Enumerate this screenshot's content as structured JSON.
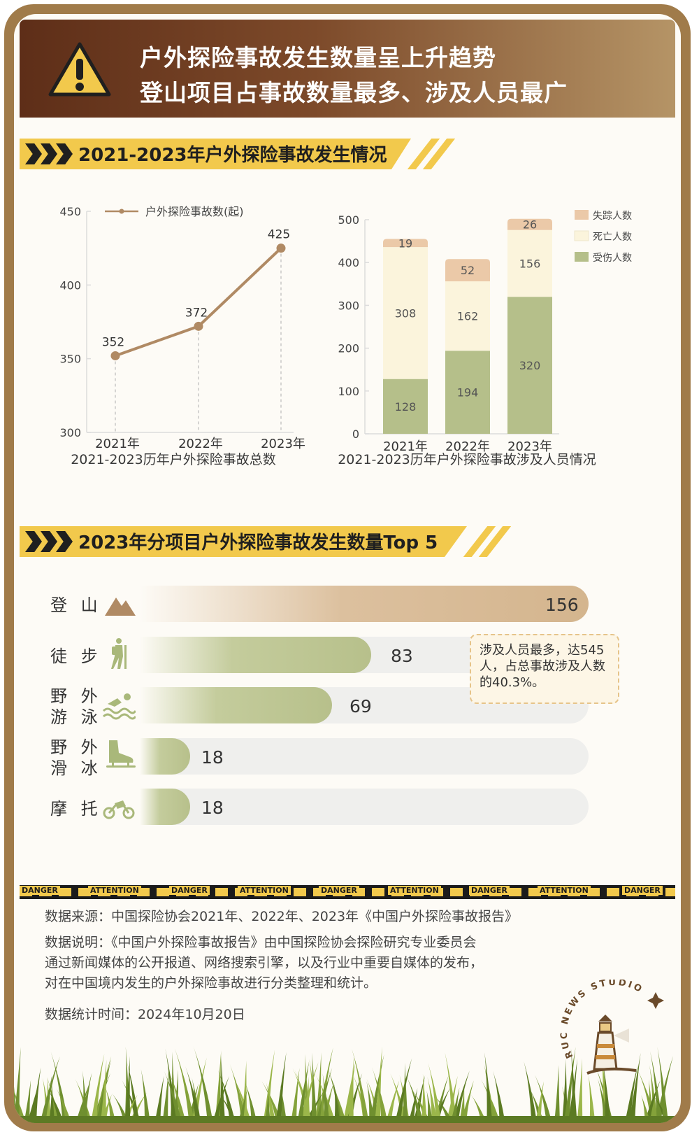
{
  "header": {
    "line1": "户外探险事故发生数量呈上升趋势",
    "line2": "登山项目占事故数量最多、涉及人员最广"
  },
  "section1": {
    "title": "2021-2023年户外探险事故发生情况"
  },
  "section2": {
    "title": "2023年分项目户外探险事故发生数量Top 5"
  },
  "chart_data": [
    {
      "type": "line",
      "legend": "户外探险事故数(起)",
      "categories": [
        "2021年",
        "2022年",
        "2023年"
      ],
      "values": [
        352,
        372,
        425
      ],
      "ylim": [
        300,
        450
      ],
      "yticks": [
        300,
        350,
        400,
        450
      ],
      "caption": "2021-2023历年户外探险事故总数",
      "color": "#b08a64"
    },
    {
      "type": "bar",
      "stacked": true,
      "categories": [
        "2021年",
        "2022年",
        "2023年"
      ],
      "series": [
        {
          "name": "受伤人数",
          "values": [
            128,
            194,
            320
          ],
          "color": "#b5bf8a"
        },
        {
          "name": "死亡人数",
          "values": [
            308,
            162,
            156
          ],
          "color": "#fbf4dc"
        },
        {
          "name": "失踪人数",
          "values": [
            19,
            52,
            26
          ],
          "color": "#ebc9a8"
        }
      ],
      "legend_order": [
        "失踪人数",
        "死亡人数",
        "受伤人数"
      ],
      "ylim": [
        0,
        500
      ],
      "yticks": [
        0,
        100,
        200,
        300,
        400,
        500
      ],
      "caption": "2021-2023历年户外探险事故涉及人员情况"
    },
    {
      "type": "bar",
      "orientation": "horizontal",
      "categories": [
        "登山",
        "徒步",
        "野外游泳",
        "野外滑冰",
        "摩托"
      ],
      "values": [
        156,
        83,
        69,
        18,
        18
      ],
      "xlim": [
        0,
        156
      ]
    }
  ],
  "top5": {
    "rows": [
      {
        "label": "登 山",
        "value": "156",
        "icon": "mountain-icon"
      },
      {
        "label": "徒 步",
        "value": "83",
        "icon": "hiker-icon"
      },
      {
        "label": "野 外\n游 泳",
        "value": "69",
        "icon": "swimmer-icon"
      },
      {
        "label": "野 外\n滑 冰",
        "value": "18",
        "icon": "ice-skate-icon"
      },
      {
        "label": "摩 托",
        "value": "18",
        "icon": "motorcycle-icon"
      }
    ],
    "note": "涉及人员最多，达545人，占总事故涉及人数的40.3%。"
  },
  "tape": {
    "words": [
      "DANGER",
      "ATTENTION",
      "DANGER",
      "ATTENTION",
      "DANGER",
      "ATTENTION",
      "DANGER",
      "ATTENTION",
      "DANGER"
    ]
  },
  "footer": {
    "source": "数据来源：中国探险协会2021年、2022年、2023年《中国户外探险事故报告》",
    "desc1": "数据说明：《中国户外探险事故报告》由中国探险协会探险研究专业委员会",
    "desc2": "通过新闻媒体的公开报道、网络搜索引擎，以及行业中重要自媒体的发布，",
    "desc3": "对在中国境内发生的户外探险事故进行分类整理和统计。",
    "date": "数据统计时间：2024年10月20日"
  },
  "logo": {
    "text": "RUC NEWS STUDIO"
  }
}
